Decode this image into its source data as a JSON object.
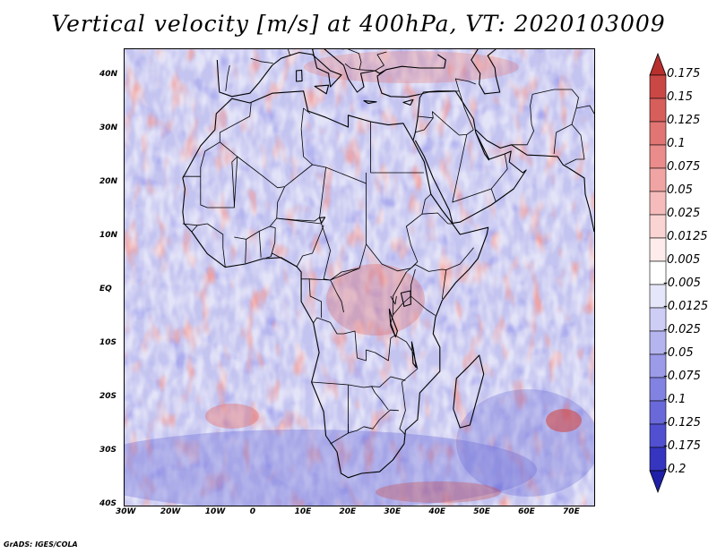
{
  "title": "Vertical velocity [m/s] at 400hPa, VT: 2020103009",
  "credit": "GrADS: IGES/COLA",
  "map": {
    "projection": "lat-lon",
    "lon_range": [
      -30,
      75
    ],
    "lat_range": [
      -40,
      45
    ],
    "background_color": "#c9c9f2",
    "coast_color": "#000000",
    "lon_ticks": [
      "30W",
      "20W",
      "10W",
      "0",
      "10E",
      "20E",
      "30E",
      "40E",
      "50E",
      "60E",
      "70E"
    ],
    "lat_ticks": [
      "40N",
      "30N",
      "20N",
      "10N",
      "EQ",
      "10S",
      "20S",
      "30S",
      "40S"
    ]
  },
  "colorbar": {
    "labels": [
      "0.175",
      "0.15",
      "0.125",
      "0.1",
      "0.075",
      "0.05",
      "0.025",
      "0.0125",
      "0.005",
      "-0.005",
      "-0.0125",
      "-0.025",
      "-0.05",
      "-0.075",
      "-0.1",
      "-0.125",
      "-0.175",
      "-0.2"
    ],
    "colors": [
      "#b8302e",
      "#c94845",
      "#d65e5b",
      "#e17574",
      "#e98c8b",
      "#f0a4a3",
      "#f5bcbb",
      "#f9d4d3",
      "#fdeceb",
      "#ffffff",
      "#e6e6fa",
      "#cdcdf5",
      "#b4b4ef",
      "#9b9be9",
      "#8282e2",
      "#6969da",
      "#5050d0",
      "#3535c0",
      "#1f1fa8"
    ]
  }
}
